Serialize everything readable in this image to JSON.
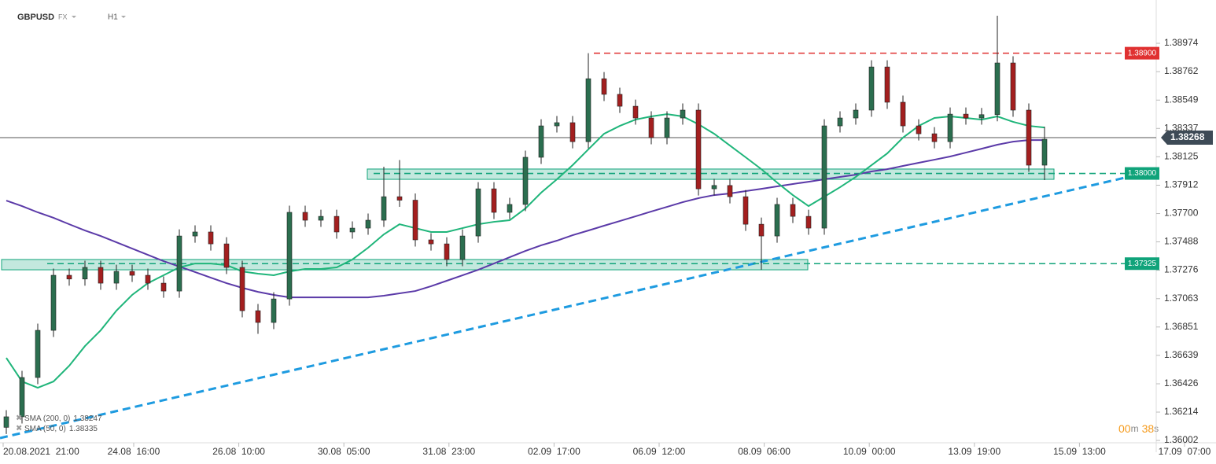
{
  "header": {
    "symbol": "GBPUSD",
    "market": "FX",
    "interval": "H1"
  },
  "timer": {
    "minutes": "00",
    "m": "m",
    "seconds": "38",
    "s": "s"
  },
  "chart_data": {
    "type": "candlestick",
    "ylim": [
      1.35914,
      1.39298
    ],
    "yticks": [
      1.38974,
      1.38762,
      1.38549,
      1.38337,
      1.38125,
      1.37912,
      {
        "value": 1.377,
        "label": "1.37700"
      },
      1.37488,
      1.37276,
      1.37063,
      1.36851,
      1.36639,
      1.36426,
      1.36214,
      1.36002
    ],
    "x_labels": [
      "20.08.2021  21:00",
      "24.08  16:00",
      "26.08  10:00",
      "30.08  05:00",
      "31.08  23:00",
      "02.09  17:00",
      "06.09  12:00",
      "08.09  06:00",
      "10.09  00:00",
      "13.09  19:00",
      "15.09  13:00",
      "17.09  07:00"
    ],
    "up_color": "#2b6e4f",
    "down_color": "#a31f1f",
    "open": [
      1.361,
      1.36179,
      1.36473,
      1.36826,
      1.37238,
      1.3721,
      1.37297,
      1.37179,
      1.37267,
      1.37238,
      1.37179,
      1.3712,
      1.37532,
      1.37562,
      1.37473,
      1.37297,
      1.36973,
      1.36885,
      1.37061,
      1.37709,
      1.3765,
      1.37679,
      1.37562,
      1.37591,
      1.3765,
      1.37826,
      1.378,
      1.37503,
      1.37473,
      1.37356,
      1.37532,
      1.37885,
      1.37709,
      1.37768,
      1.38121,
      1.38356,
      1.3838,
      1.38238,
      1.38709,
      1.38592,
      1.38503,
      1.38415,
      1.38268,
      1.38415,
      1.38474,
      1.37885,
      1.3791,
      1.37826,
      1.3762,
      1.37532,
      1.37768,
      1.37679,
      1.37591,
      1.38356,
      1.38415,
      1.38474,
      1.38797,
      1.38533,
      1.38356,
      1.38297,
      1.38238,
      1.38444,
      1.38415,
      1.3844,
      1.38827,
      1.38474,
      1.38062
    ],
    "high": [
      1.36229,
      1.36523,
      1.36876,
      1.37288,
      1.37288,
      1.37347,
      1.37347,
      1.37317,
      1.37317,
      1.37288,
      1.37229,
      1.37582,
      1.37612,
      1.37612,
      1.37523,
      1.37347,
      1.37023,
      1.37111,
      1.37759,
      1.37759,
      1.37729,
      1.37729,
      1.37641,
      1.377,
      1.3805,
      1.381,
      1.3785,
      1.37553,
      1.37523,
      1.37582,
      1.37935,
      1.37935,
      1.37818,
      1.38171,
      1.38406,
      1.3843,
      1.3843,
      1.389,
      1.38759,
      1.38642,
      1.38553,
      1.38465,
      1.38465,
      1.38524,
      1.38524,
      1.3796,
      1.3796,
      1.37876,
      1.3767,
      1.37818,
      1.37818,
      1.37729,
      1.38406,
      1.38465,
      1.38524,
      1.38847,
      1.38847,
      1.38583,
      1.38406,
      1.38347,
      1.38494,
      1.38494,
      1.3849,
      1.3918,
      1.38877,
      1.38524,
      1.3835
    ],
    "low": [
      1.3605,
      1.36129,
      1.36423,
      1.36776,
      1.3716,
      1.3716,
      1.37129,
      1.37129,
      1.37188,
      1.37129,
      1.3707,
      1.3707,
      1.37482,
      1.37423,
      1.37247,
      1.36923,
      1.368,
      1.36835,
      1.37011,
      1.376,
      1.376,
      1.37512,
      1.37512,
      1.37541,
      1.376,
      1.3775,
      1.37453,
      1.37423,
      1.37306,
      1.37306,
      1.37482,
      1.37659,
      1.37659,
      1.37718,
      1.38071,
      1.38306,
      1.38188,
      1.38188,
      1.38542,
      1.38453,
      1.38365,
      1.38218,
      1.38218,
      1.38365,
      1.37835,
      1.37835,
      1.37776,
      1.3757,
      1.3728,
      1.37482,
      1.37629,
      1.37541,
      1.37541,
      1.38306,
      1.38365,
      1.38424,
      1.38483,
      1.38306,
      1.38247,
      1.38188,
      1.38188,
      1.38365,
      1.38365,
      1.3839,
      1.38424,
      1.38012,
      1.3795
    ],
    "close": [
      1.36179,
      1.36473,
      1.36826,
      1.37238,
      1.3721,
      1.37297,
      1.37179,
      1.37267,
      1.37238,
      1.37179,
      1.3712,
      1.37532,
      1.37562,
      1.37473,
      1.37297,
      1.36973,
      1.36885,
      1.37061,
      1.37709,
      1.3765,
      1.37679,
      1.37562,
      1.37591,
      1.3765,
      1.37826,
      1.378,
      1.37503,
      1.37473,
      1.37356,
      1.37532,
      1.37885,
      1.37709,
      1.37768,
      1.38121,
      1.38356,
      1.3838,
      1.38238,
      1.38709,
      1.38592,
      1.38503,
      1.38415,
      1.38268,
      1.38415,
      1.38474,
      1.37885,
      1.3791,
      1.37826,
      1.3762,
      1.37532,
      1.37768,
      1.37679,
      1.37591,
      1.38356,
      1.38415,
      1.38474,
      1.38797,
      1.38533,
      1.38356,
      1.38297,
      1.38238,
      1.38444,
      1.38415,
      1.3844,
      1.38827,
      1.38474,
      1.38062,
      1.38256
    ],
    "series": [
      {
        "name": "SMA (200, 0)",
        "last": 1.38247,
        "color": "#5b3aa8",
        "values": [
          1.37797,
          1.37756,
          1.37709,
          1.37668,
          1.3762,
          1.37573,
          1.37532,
          1.37485,
          1.37438,
          1.37391,
          1.37344,
          1.37303,
          1.37262,
          1.3722,
          1.37179,
          1.37144,
          1.37114,
          1.37091,
          1.37073,
          1.37073,
          1.37073,
          1.37073,
          1.37073,
          1.37073,
          1.37085,
          1.37103,
          1.3712,
          1.37156,
          1.37197,
          1.37238,
          1.37279,
          1.37326,
          1.37373,
          1.3742,
          1.37462,
          1.37497,
          1.37538,
          1.37573,
          1.37609,
          1.37644,
          1.37679,
          1.37715,
          1.3775,
          1.37785,
          1.37815,
          1.37838,
          1.3785,
          1.37868,
          1.37885,
          1.37903,
          1.37921,
          1.37938,
          1.37956,
          1.37974,
          1.37991,
          1.38015,
          1.38032,
          1.38056,
          1.3808,
          1.38103,
          1.38127,
          1.38156,
          1.38185,
          1.38215,
          1.38238,
          1.3825,
          1.3825
        ]
      },
      {
        "name": "SMA (50, 0)",
        "last": 1.38335,
        "color": "#1fb57a",
        "values": [
          1.3662,
          1.36443,
          1.36396,
          1.36443,
          1.36561,
          1.36708,
          1.36826,
          1.36973,
          1.37091,
          1.37179,
          1.37238,
          1.37297,
          1.37326,
          1.37326,
          1.37314,
          1.37267,
          1.3725,
          1.37238,
          1.37267,
          1.37285,
          1.37285,
          1.37297,
          1.37356,
          1.37444,
          1.37544,
          1.3762,
          1.37591,
          1.37562,
          1.37562,
          1.37591,
          1.3762,
          1.37638,
          1.3765,
          1.37738,
          1.37856,
          1.37956,
          1.38062,
          1.3818,
          1.38297,
          1.38356,
          1.38403,
          1.38427,
          1.38444,
          1.38427,
          1.38368,
          1.38297,
          1.38209,
          1.38121,
          1.38032,
          1.37932,
          1.37838,
          1.37756,
          1.37826,
          1.37897,
          1.37974,
          1.38062,
          1.3815,
          1.38268,
          1.38356,
          1.38415,
          1.38427,
          1.38415,
          1.38403,
          1.38427,
          1.38386,
          1.38356,
          1.38344
        ]
      }
    ],
    "levels": [
      {
        "value": 1.389,
        "label": "1.38900",
        "color": "#e03131"
      },
      {
        "value": 1.38,
        "label": "1.38000",
        "color": "#10a37a"
      },
      {
        "value": 1.37325,
        "label": "1.37325",
        "color": "#10a37a"
      }
    ],
    "zones": [
      [
        1.38033,
        1.37956
      ],
      [
        1.37356,
        1.37279
      ]
    ],
    "trend_line": [
      1.3602,
      1.37968
    ],
    "trend_color": "#1e9be0",
    "current_price": {
      "value": 1.38268,
      "label": "1.38268"
    }
  }
}
